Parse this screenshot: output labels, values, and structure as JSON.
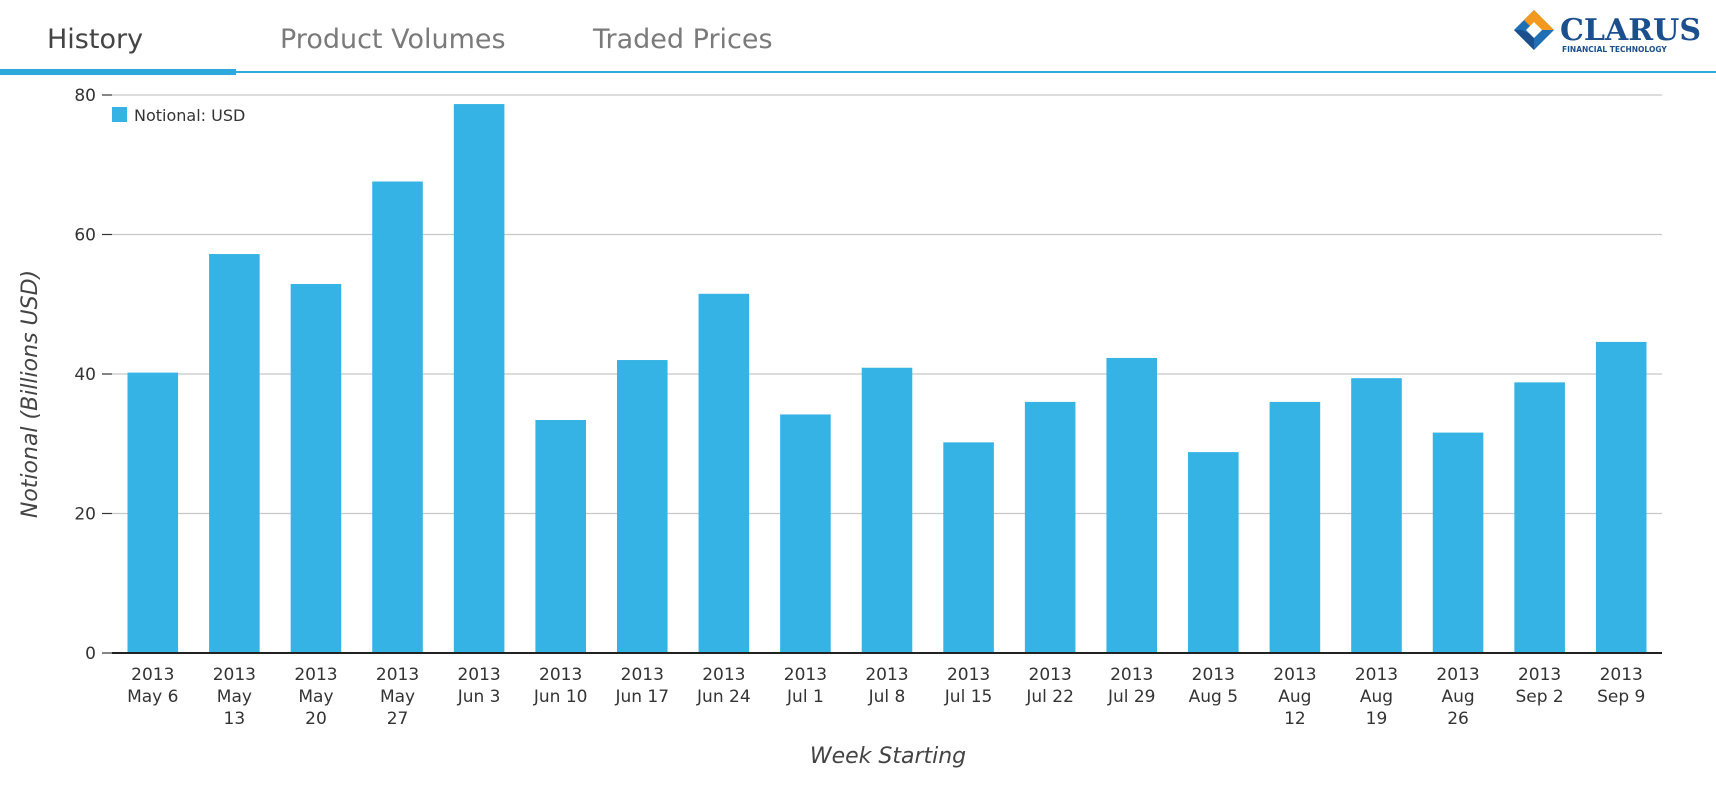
{
  "tabs": [
    {
      "label": "History",
      "active": true
    },
    {
      "label": "Product Volumes",
      "active": false
    },
    {
      "label": "Traded Prices",
      "active": false
    }
  ],
  "logo": {
    "name": "CLARUS",
    "tagline": "FINANCIAL TECHNOLOGY",
    "icon": "clarus-diamond-logo",
    "colors": {
      "orange": "#f39a1e",
      "blue": "#1e6fb3",
      "navy": "#1b4f8e"
    }
  },
  "accent_color": "#2ea9de",
  "bar_color": "#34b3e4",
  "chart_data": {
    "type": "bar",
    "title": "",
    "xlabel": "Week Starting",
    "ylabel": "Notional (Billions USD)",
    "ylim": [
      0,
      80
    ],
    "yticks": [
      0,
      20,
      40,
      60,
      80
    ],
    "grid": true,
    "legend_position": "top-left",
    "categories": [
      "2013 May 6",
      "2013 May 13",
      "2013 May 20",
      "2013 May 27",
      "2013 Jun 3",
      "2013 Jun 10",
      "2013 Jun 17",
      "2013 Jun 24",
      "2013 Jul 1",
      "2013 Jul 8",
      "2013 Jul 15",
      "2013 Jul 22",
      "2013 Jul 29",
      "2013 Aug 5",
      "2013 Aug 12",
      "2013 Aug 19",
      "2013 Aug 26",
      "2013 Sep 2",
      "2013 Sep 9"
    ],
    "category_label_lines": [
      [
        "2013",
        "May 6"
      ],
      [
        "2013",
        "May",
        "13"
      ],
      [
        "2013",
        "May",
        "20"
      ],
      [
        "2013",
        "May",
        "27"
      ],
      [
        "2013",
        "Jun 3"
      ],
      [
        "2013",
        "Jun 10"
      ],
      [
        "2013",
        "Jun 17"
      ],
      [
        "2013",
        "Jun 24"
      ],
      [
        "2013",
        "Jul 1"
      ],
      [
        "2013",
        "Jul 8"
      ],
      [
        "2013",
        "Jul 15"
      ],
      [
        "2013",
        "Jul 22"
      ],
      [
        "2013",
        "Jul 29"
      ],
      [
        "2013",
        "Aug 5"
      ],
      [
        "2013",
        "Aug",
        "12"
      ],
      [
        "2013",
        "Aug",
        "19"
      ],
      [
        "2013",
        "Aug",
        "26"
      ],
      [
        "2013",
        "Sep 2"
      ],
      [
        "2013",
        "Sep 9"
      ]
    ],
    "series": [
      {
        "name": "Notional: USD",
        "values": [
          40.2,
          57.2,
          52.9,
          67.6,
          78.7,
          33.4,
          42.0,
          51.5,
          34.2,
          40.9,
          30.2,
          36.0,
          42.3,
          28.8,
          36.0,
          39.4,
          31.6,
          38.8,
          44.6
        ]
      }
    ]
  }
}
